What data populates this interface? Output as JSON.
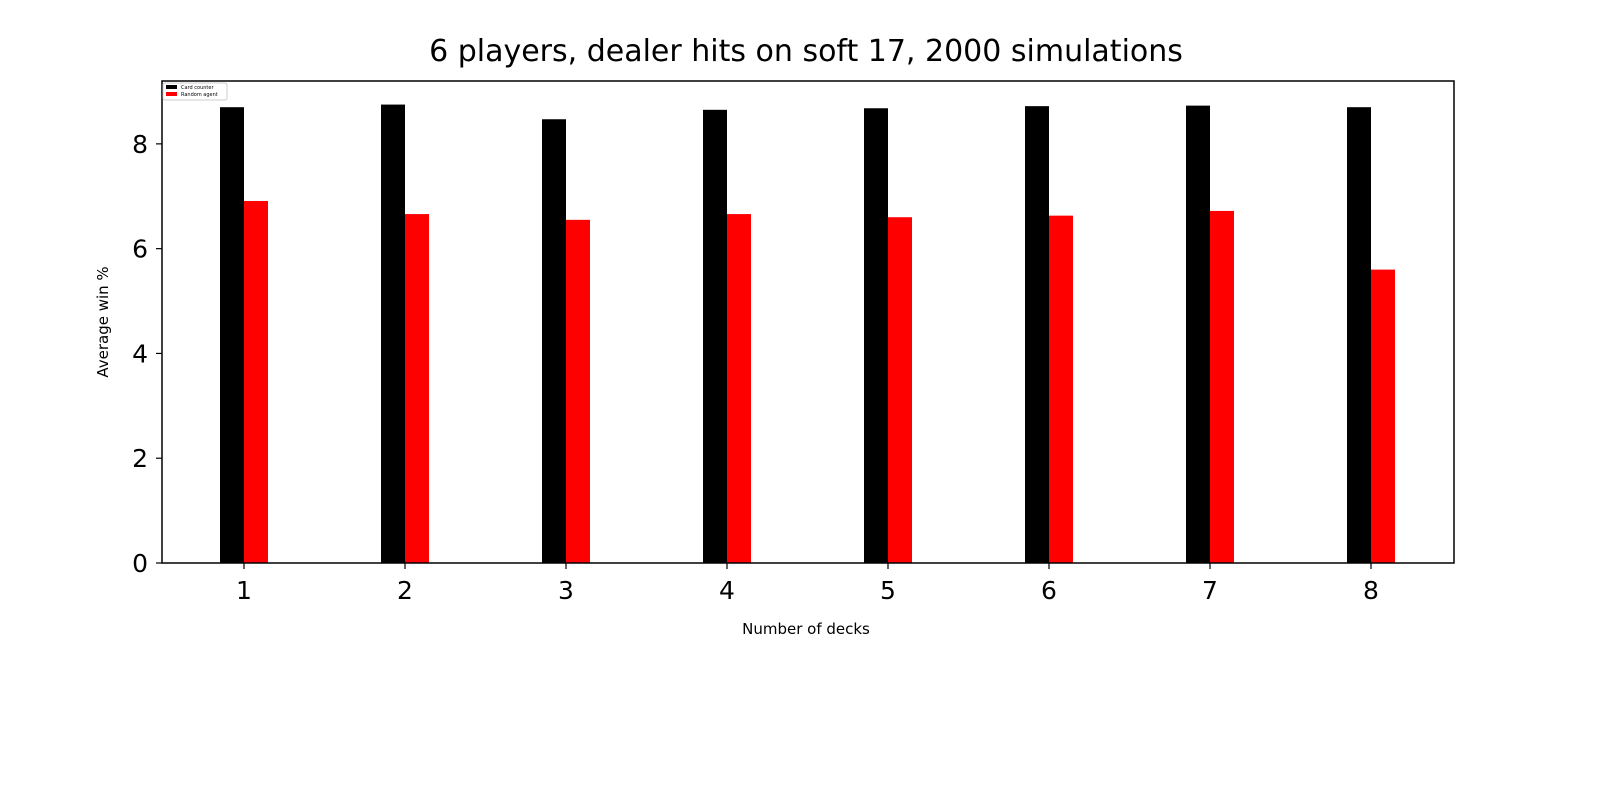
{
  "chart_data": {
    "type": "bar",
    "title": "6 players, dealer hits on soft 17, 2000 simulations",
    "xlabel": "Number of decks",
    "ylabel": "Average win %",
    "categories": [
      "1",
      "2",
      "3",
      "4",
      "5",
      "6",
      "7",
      "8"
    ],
    "series": [
      {
        "name": "Card counter",
        "color": "#000000",
        "values": [
          8.7,
          8.75,
          8.47,
          8.65,
          8.68,
          8.72,
          8.73,
          8.7
        ]
      },
      {
        "name": "Random agent",
        "color": "#ff0000",
        "values": [
          6.91,
          6.66,
          6.55,
          6.66,
          6.6,
          6.63,
          6.72,
          5.6
        ]
      }
    ],
    "yticks": [
      "0",
      "2",
      "4",
      "6",
      "8"
    ],
    "ylim": [
      0,
      9.2
    ],
    "grid": false,
    "legend_position": "top-left"
  }
}
